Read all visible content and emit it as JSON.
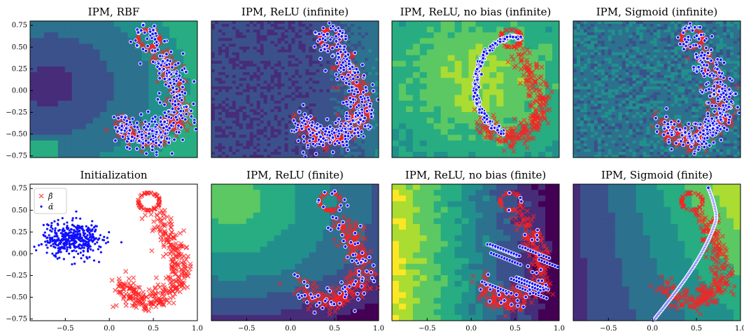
{
  "chart_data": [
    {
      "type": "scatter",
      "title": "IPM, RBF",
      "background": "heatmap",
      "yticks": [
        "0.75",
        "0.50",
        "0.25",
        "0.00",
        "−0.25",
        "−0.50",
        "−0.75"
      ],
      "xticks": [],
      "alpha_pattern": "spread_in_moon",
      "beta_pattern": "moon",
      "colormap": "viridis"
    },
    {
      "type": "scatter",
      "title": "IPM, ReLU (infinite)",
      "background": "noisy_heatmap",
      "yticks": [],
      "xticks": [],
      "alpha_pattern": "moon_covering",
      "beta_pattern": "moon",
      "colormap": "viridis"
    },
    {
      "type": "scatter",
      "title": "IPM, ReLU, no bias (infinite)",
      "background": "radial_heatmap",
      "yticks": [],
      "xticks": [],
      "alpha_pattern": "outer_arc",
      "beta_pattern": "moon",
      "colormap": "viridis"
    },
    {
      "type": "scatter",
      "title": "IPM, Sigmoid (infinite)",
      "background": "noisy_heatmap",
      "yticks": [],
      "xticks": [],
      "alpha_pattern": "moon_covering",
      "beta_pattern": "moon",
      "colormap": "viridis"
    },
    {
      "type": "scatter",
      "title": "Initialization",
      "background": "white",
      "xlim": [
        -0.9,
        1.0
      ],
      "ylim": [
        -0.77,
        0.8
      ],
      "yticks": [
        "0.75",
        "0.50",
        "0.25",
        "0.00",
        "−0.25",
        "−0.50",
        "−0.75"
      ],
      "xticks": [
        "−0.5",
        "0.0",
        "0.5",
        "1.0"
      ],
      "legend": {
        "position": "upper-left",
        "entries": [
          "β̂",
          "α̂"
        ]
      },
      "series": [
        {
          "name": "β̂",
          "marker": "x",
          "color": "#ff0000",
          "pattern": "moon",
          "count": 500
        },
        {
          "name": "α̂",
          "marker": "dot",
          "color": "#0000ff",
          "pattern": "blob",
          "center": [
            -0.4,
            0.15
          ],
          "count": 500
        }
      ]
    },
    {
      "type": "scatter",
      "title": "IPM, ReLU (finite)",
      "background": "heatmap",
      "yticks": [],
      "xticks": [
        "−0.5",
        "0.0",
        "0.5",
        "1.0"
      ],
      "alpha_pattern": "sparse_in_moon",
      "beta_pattern": "moon",
      "colormap": "viridis"
    },
    {
      "type": "scatter",
      "title": "IPM, ReLU, no bias (finite)",
      "background": "heatmap",
      "yticks": [],
      "xticks": [
        "−0.5",
        "0.0",
        "0.5",
        "1.0"
      ],
      "alpha_pattern": "streaks",
      "beta_pattern": "moon",
      "colormap": "viridis"
    },
    {
      "type": "scatter",
      "title": "IPM, Sigmoid (finite)",
      "background": "heatmap",
      "yticks": [],
      "xticks": [
        "−0.5",
        "0.0",
        "0.5",
        "1.0"
      ],
      "alpha_pattern": "curve",
      "beta_pattern": "moon",
      "colormap": "viridis"
    }
  ]
}
